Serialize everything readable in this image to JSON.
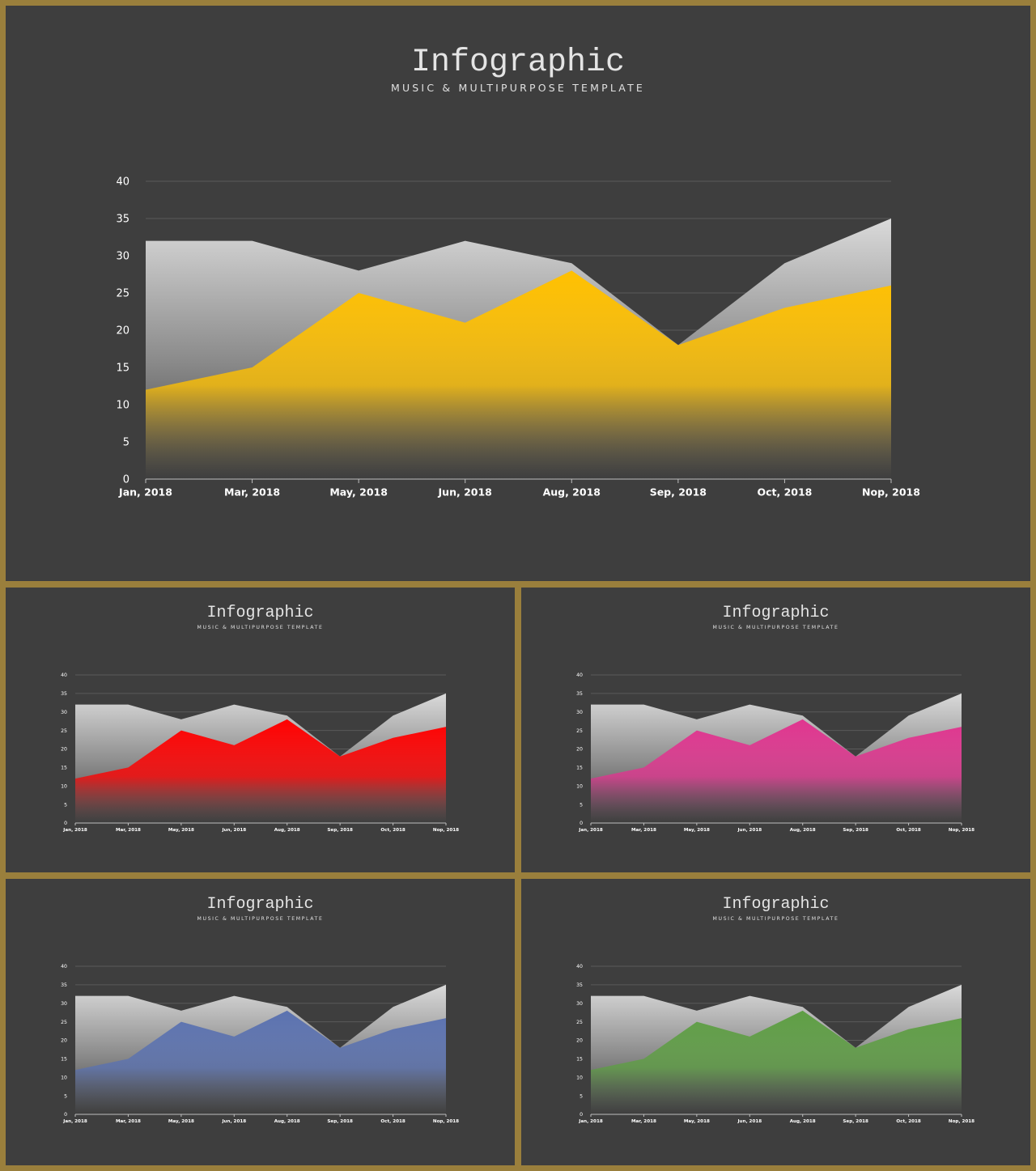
{
  "chart_data": [
    {
      "type": "area",
      "title": "Infographic",
      "subtitle": "MUSIC & MULTIPURPOSE TEMPLATE",
      "categories": [
        "Jan, 2018",
        "Mar, 2018",
        "May, 2018",
        "Jun, 2018",
        "Aug, 2018",
        "Sep, 2018",
        "Oct, 2018",
        "Nop, 2018"
      ],
      "series": [
        {
          "values": [
            32,
            32,
            28,
            32,
            29,
            18,
            29,
            35
          ],
          "color": "#d9d9d9"
        },
        {
          "values": [
            12,
            15,
            25,
            21,
            28,
            18,
            23,
            26
          ],
          "color": "#ffc000"
        }
      ],
      "ylim": [
        0,
        40
      ],
      "yticks": [
        0,
        5,
        10,
        15,
        20,
        25,
        30,
        35,
        40
      ],
      "grid": true
    },
    {
      "type": "area",
      "title": "Infographic",
      "subtitle": "MUSIC & MULTIPURPOSE TEMPLATE",
      "categories": [
        "Jan, 2018",
        "Mar, 2018",
        "May, 2018",
        "Jun, 2018",
        "Aug, 2018",
        "Sep, 2018",
        "Oct, 2018",
        "Nop, 2018"
      ],
      "series": [
        {
          "values": [
            32,
            32,
            28,
            32,
            29,
            18,
            29,
            35
          ],
          "color": "#d9d9d9"
        },
        {
          "values": [
            12,
            15,
            25,
            21,
            28,
            18,
            23,
            26
          ],
          "color": "#ff0000"
        }
      ],
      "ylim": [
        0,
        40
      ],
      "yticks": [
        0,
        5,
        10,
        15,
        20,
        25,
        30,
        35,
        40
      ],
      "grid": true
    },
    {
      "type": "area",
      "title": "Infographic",
      "subtitle": "MUSIC & MULTIPURPOSE TEMPLATE",
      "categories": [
        "Jan, 2018",
        "Mar, 2018",
        "May, 2018",
        "Jun, 2018",
        "Aug, 2018",
        "Sep, 2018",
        "Oct, 2018",
        "Nop, 2018"
      ],
      "series": [
        {
          "values": [
            32,
            32,
            28,
            32,
            29,
            18,
            29,
            35
          ],
          "color": "#d9d9d9"
        },
        {
          "values": [
            12,
            15,
            25,
            21,
            28,
            18,
            23,
            26
          ],
          "color": "#e0358f"
        }
      ],
      "ylim": [
        0,
        40
      ],
      "yticks": [
        0,
        5,
        10,
        15,
        20,
        25,
        30,
        35,
        40
      ],
      "grid": true
    },
    {
      "type": "area",
      "title": "Infographic",
      "subtitle": "MUSIC & MULTIPURPOSE TEMPLATE",
      "categories": [
        "Jan, 2018",
        "Mar, 2018",
        "May, 2018",
        "Jun, 2018",
        "Aug, 2018",
        "Sep, 2018",
        "Oct, 2018",
        "Nop, 2018"
      ],
      "series": [
        {
          "values": [
            32,
            32,
            28,
            32,
            29,
            18,
            29,
            35
          ],
          "color": "#d9d9d9"
        },
        {
          "values": [
            12,
            15,
            25,
            21,
            28,
            18,
            23,
            26
          ],
          "color": "#5b72b0"
        }
      ],
      "ylim": [
        0,
        40
      ],
      "yticks": [
        0,
        5,
        10,
        15,
        20,
        25,
        30,
        35,
        40
      ],
      "grid": true
    },
    {
      "type": "area",
      "title": "Infographic",
      "subtitle": "MUSIC & MULTIPURPOSE TEMPLATE",
      "categories": [
        "Jan, 2018",
        "Mar, 2018",
        "May, 2018",
        "Jun, 2018",
        "Aug, 2018",
        "Sep, 2018",
        "Oct, 2018",
        "Nop, 2018"
      ],
      "series": [
        {
          "values": [
            32,
            32,
            28,
            32,
            29,
            18,
            29,
            35
          ],
          "color": "#d9d9d9"
        },
        {
          "values": [
            12,
            15,
            25,
            21,
            28,
            18,
            23,
            26
          ],
          "color": "#5e9e44"
        }
      ],
      "ylim": [
        0,
        40
      ],
      "yticks": [
        0,
        5,
        10,
        15,
        20,
        25,
        30,
        35,
        40
      ],
      "grid": true
    }
  ]
}
